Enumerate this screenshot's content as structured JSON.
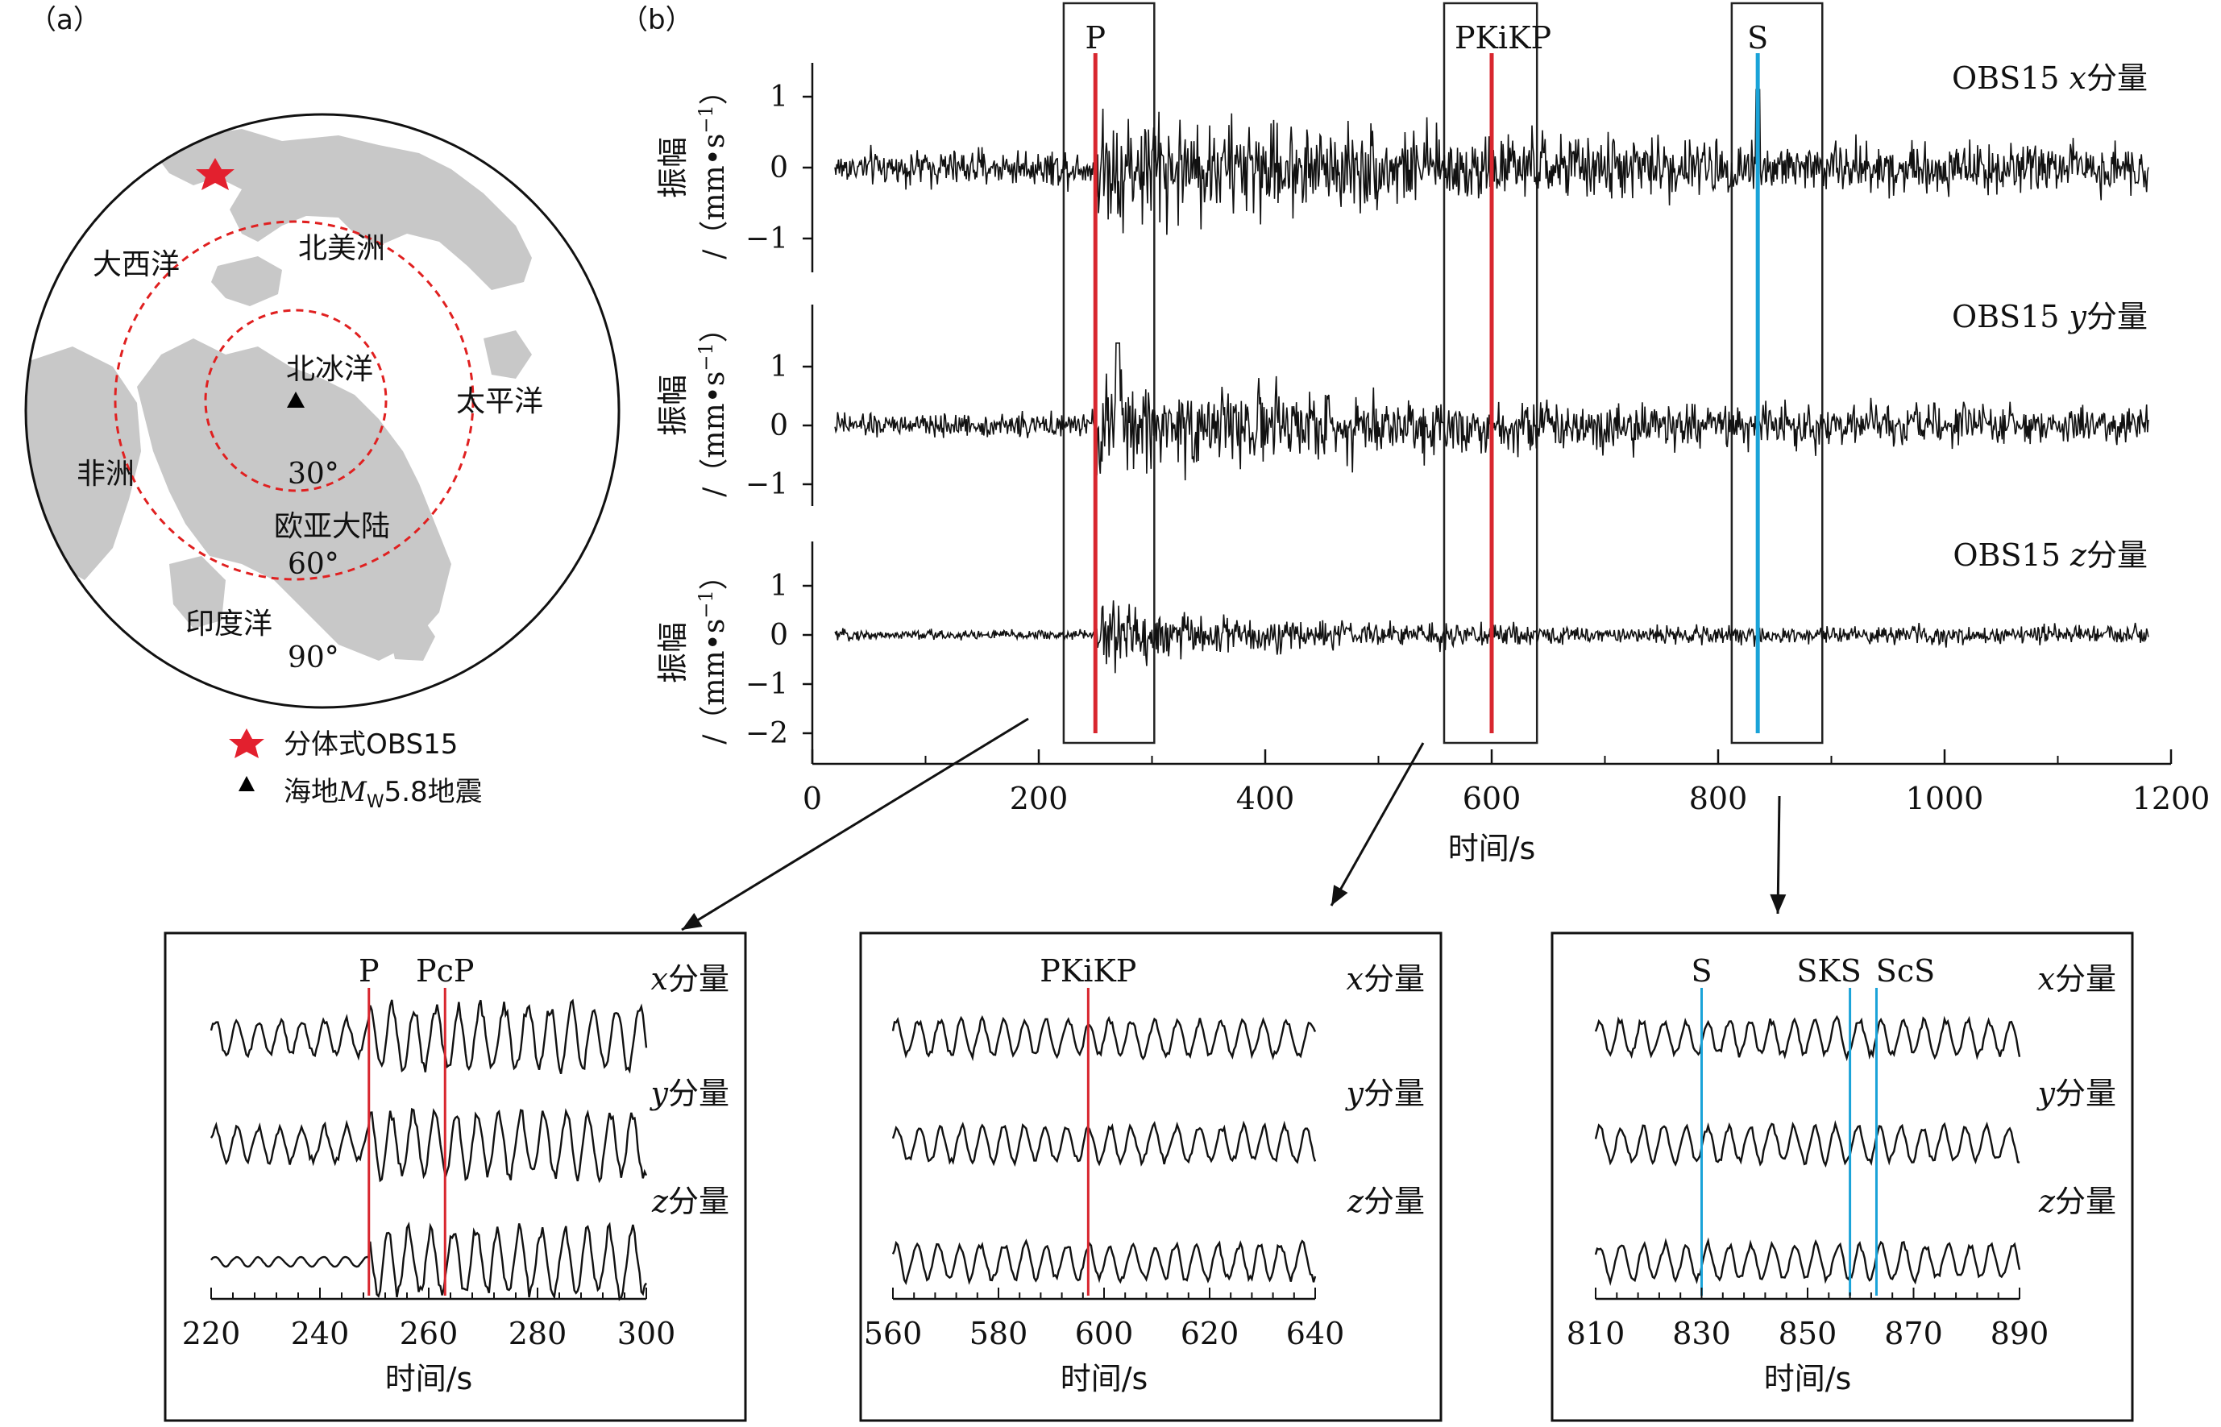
{
  "panel_a": {
    "label": "（a）",
    "map_labels": [
      "大西洋",
      "北美洲",
      "北冰洋",
      "太平洋",
      "非洲",
      "欧亚大陆",
      "印度洋"
    ],
    "ring_labels": [
      "30°",
      "60°",
      "90°"
    ],
    "legend": [
      {
        "symbol": "red-star",
        "text": "分体式OBS15"
      },
      {
        "symbol": "black-triangle",
        "text_prefix": "海地",
        "M": "M",
        "sub": "W",
        "text_suffix": "5.8地震"
      }
    ],
    "colors": {
      "land": "#c8c8c8",
      "ring": "#e02020",
      "star": "#e3202e",
      "triangle": "#000000"
    }
  },
  "panel_b": {
    "label": "（b）",
    "phase_labels": [
      "P",
      "PKiKP",
      "S"
    ],
    "phase_times": [
      250,
      600,
      835
    ],
    "phase_colors": [
      "#d8262e",
      "#d8262e",
      "#1aa3d8"
    ],
    "channels": [
      {
        "prefix": "OBS15 ",
        "comp": "x",
        "suffix": "分量",
        "yticks": [
          1,
          0,
          -1
        ],
        "yrange": [
          -1.5,
          1.5
        ]
      },
      {
        "prefix": "OBS15 ",
        "comp": "y",
        "suffix": "分量",
        "yticks": [
          1,
          0,
          -1
        ],
        "yrange": [
          -1.5,
          1.5
        ]
      },
      {
        "prefix": "OBS15 ",
        "comp": "z",
        "suffix": "分量",
        "yticks": [
          1,
          0,
          -1,
          -2
        ],
        "yrange": [
          -2.2,
          1.5
        ]
      }
    ],
    "ylabel_main": "振幅",
    "ylabel_unit_pre": "/（mm•s",
    "ylabel_unit_sup": "−1",
    "ylabel_unit_post": "）",
    "xaxis": {
      "ticks": [
        0,
        200,
        400,
        600,
        800,
        1000,
        1200
      ],
      "range": [
        0,
        1200
      ],
      "label": "时间/s"
    },
    "zoom_windows": [
      [
        220,
        300
      ],
      [
        560,
        640
      ],
      [
        810,
        890
      ]
    ]
  },
  "zooms": [
    {
      "xlim": [
        220,
        300
      ],
      "ticks": [
        220,
        240,
        260,
        280,
        300
      ],
      "xlabel": "时间/s",
      "phases": [
        {
          "name": "P",
          "t": 249,
          "color": "#d8262e"
        },
        {
          "name": "PcP",
          "t": 263,
          "color": "#d8262e"
        }
      ],
      "comp_labels": [
        {
          "comp": "x",
          "suffix": "分量"
        },
        {
          "comp": "y",
          "suffix": "分量"
        },
        {
          "comp": "z",
          "suffix": "分量"
        }
      ]
    },
    {
      "xlim": [
        560,
        640
      ],
      "ticks": [
        560,
        580,
        600,
        620,
        640
      ],
      "xlabel": "时间/s",
      "phases": [
        {
          "name": "PKiKP",
          "t": 597,
          "color": "#d8262e"
        }
      ],
      "comp_labels": [
        {
          "comp": "x",
          "suffix": "分量"
        },
        {
          "comp": "y",
          "suffix": "分量"
        },
        {
          "comp": "z",
          "suffix": "分量"
        }
      ]
    },
    {
      "xlim": [
        810,
        890
      ],
      "ticks": [
        810,
        830,
        850,
        870,
        890
      ],
      "xlabel": "时间/s",
      "phases": [
        {
          "name": "S",
          "t": 830,
          "color": "#1aa3d8"
        },
        {
          "name": "SKS",
          "t": 858,
          "color": "#1aa3d8"
        },
        {
          "name": "ScS",
          "t": 863,
          "color": "#1aa3d8"
        }
      ],
      "comp_labels": [
        {
          "comp": "x",
          "suffix": "分量"
        },
        {
          "comp": "y",
          "suffix": "分量"
        },
        {
          "comp": "z",
          "suffix": "分量"
        }
      ]
    }
  ]
}
